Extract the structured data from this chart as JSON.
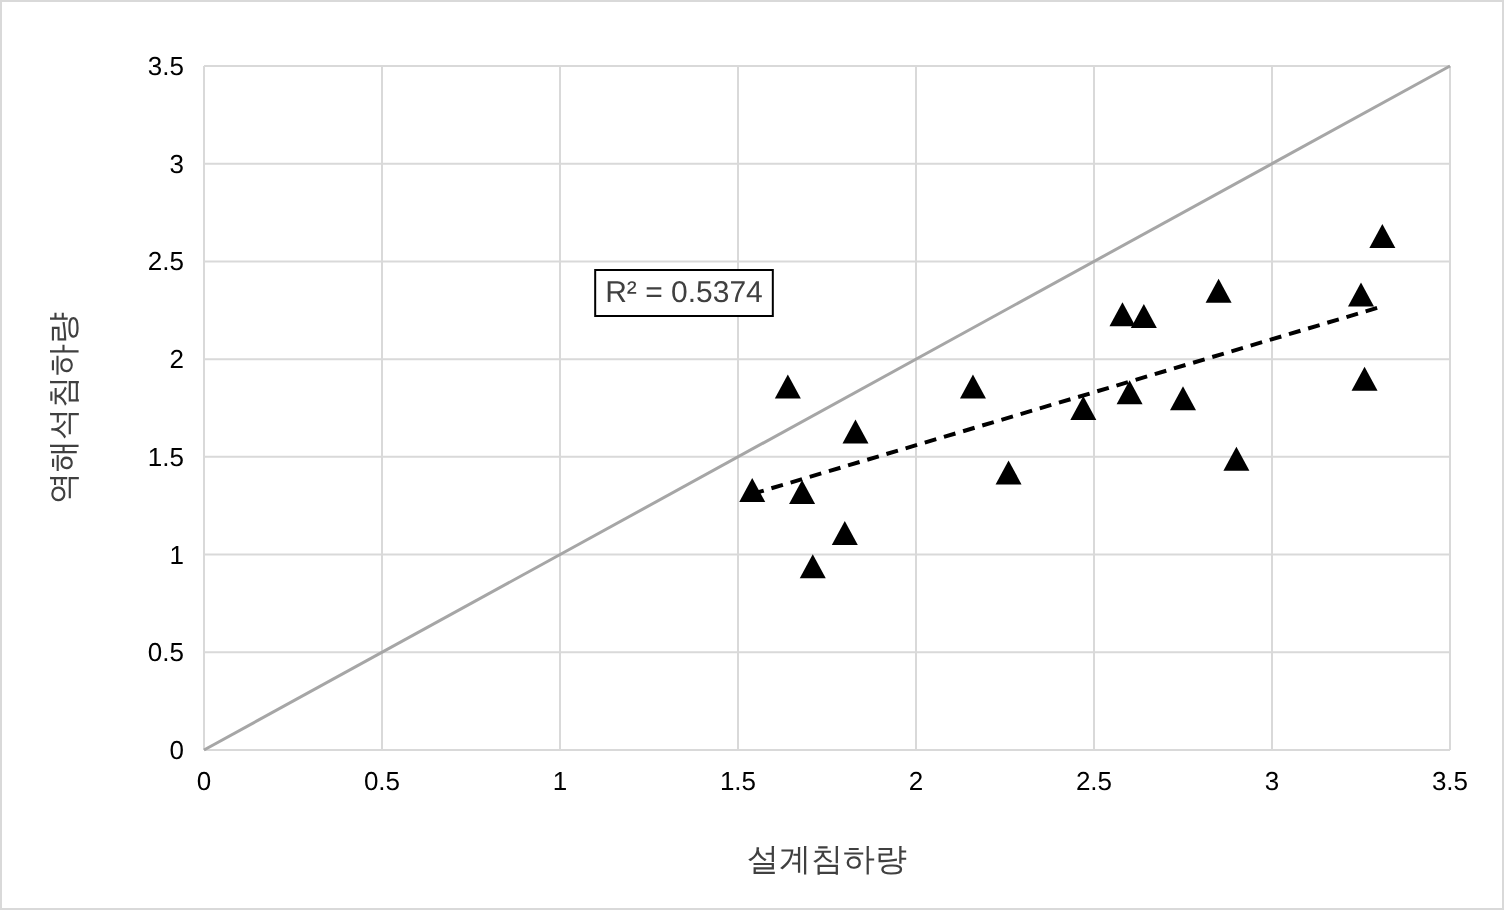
{
  "chart_data": {
    "type": "scatter",
    "xlabel": "설계침하량",
    "ylabel": "역해석침하량",
    "xlim": [
      0,
      3.5
    ],
    "ylim": [
      0,
      3.5
    ],
    "xticks": [
      0,
      0.5,
      1,
      1.5,
      2,
      2.5,
      3,
      3.5
    ],
    "yticks": [
      0,
      0.5,
      1,
      1.5,
      2,
      2.5,
      3,
      3.5
    ],
    "grid": true,
    "annotations": [
      "R² = 0.5374"
    ],
    "series": [
      {
        "color": "#000000",
        "marker": "triangle",
        "x": [
          1.54,
          1.64,
          1.68,
          1.71,
          1.8,
          1.83,
          2.16,
          2.26,
          2.47,
          2.58,
          2.6,
          2.64,
          2.75,
          2.85,
          2.9,
          3.25,
          3.26,
          3.31
        ],
        "values": [
          1.32,
          1.85,
          1.31,
          0.93,
          1.1,
          1.62,
          1.85,
          1.41,
          1.74,
          2.22,
          1.82,
          2.21,
          1.79,
          2.34,
          1.48,
          2.32,
          1.89,
          2.62
        ]
      },
      {
        "type": "line",
        "color": "#a6a6a6",
        "line_style": "solid",
        "x": [
          0,
          3.5
        ],
        "values": [
          0,
          3.5
        ]
      },
      {
        "type": "line",
        "color": "#000000",
        "line_style": "dashed",
        "x": [
          1.54,
          3.31
        ],
        "values": [
          1.31,
          2.27
        ]
      }
    ]
  }
}
